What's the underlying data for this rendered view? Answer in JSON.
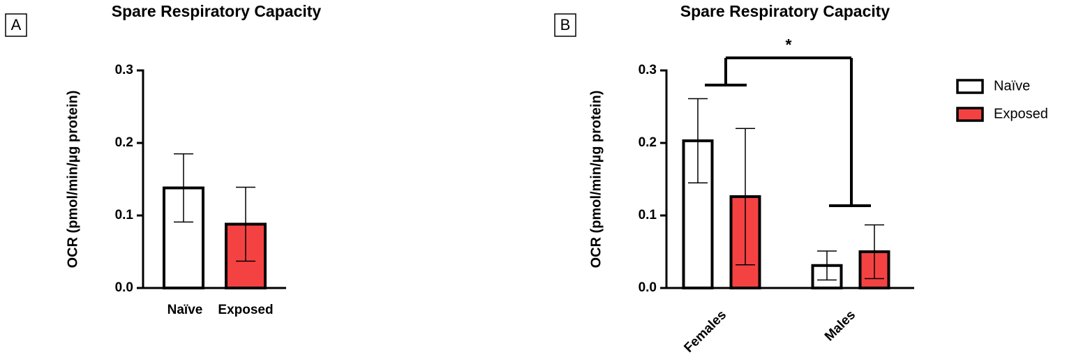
{
  "chart_data": [
    {
      "type": "bar",
      "panel": "A",
      "title": "Spare Respiratory Capacity",
      "y_label": "OCR (pmol/min/µg protein)",
      "categories": [
        "Naïve",
        "Exposed"
      ],
      "values": [
        0.138,
        0.088
      ],
      "errors": [
        0.047,
        0.051
      ],
      "colors": [
        "#ffffff",
        "#f44242"
      ],
      "ylim": [
        0,
        0.3
      ],
      "yticks": [
        {
          "value": 0,
          "label": "0.0"
        },
        0.1,
        0.2,
        0.3
      ]
    },
    {
      "type": "bar",
      "panel": "B",
      "title": "Spare Respiratory Capacity",
      "y_label": "OCR (pmol/min/µg protein)",
      "categories": [
        "Females",
        "Males"
      ],
      "series": [
        {
          "name": "Naïve",
          "color": "#ffffff",
          "values": [
            0.203,
            0.031
          ],
          "errors": [
            0.058,
            0.02
          ]
        },
        {
          "name": "Exposed",
          "color": "#f44242",
          "values": [
            0.126,
            0.05
          ],
          "errors": [
            0.094,
            0.037
          ]
        }
      ],
      "annotation": "*",
      "ylim": [
        0,
        0.3
      ],
      "yticks": [
        {
          "value": 0,
          "label": "0.0"
        },
        0.1,
        0.2,
        0.3
      ]
    }
  ]
}
